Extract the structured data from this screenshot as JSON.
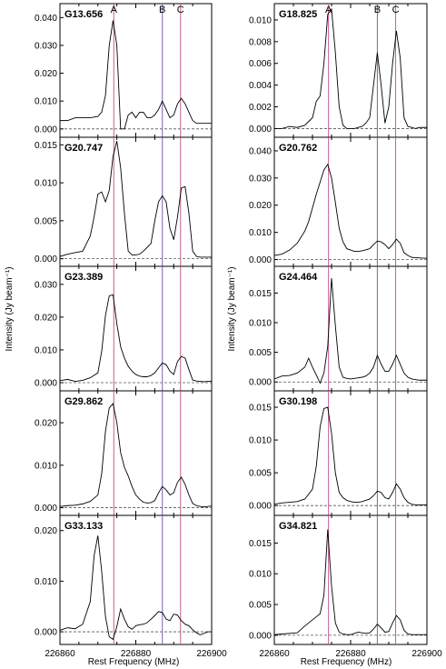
{
  "figure": {
    "ylabel": "Intensity (Jy beam⁻¹)",
    "xlabel": "Rest Frequency (MHz)",
    "xticks": [
      "226860",
      "226880",
      "226900"
    ]
  },
  "chart_data": {
    "type": "line",
    "xlim": [
      226860,
      226900
    ],
    "xticks": [
      226860,
      226880,
      226900
    ],
    "xlabel": "Rest Frequency (MHz)",
    "ylabel": "Intensity (Jy beam⁻¹)",
    "markers": [
      {
        "label": "A",
        "x": 226874.2,
        "color": "#c06090"
      },
      {
        "label": "B",
        "x": 226887.0,
        "color": "#8060b0"
      },
      {
        "label": "C",
        "x": 226891.8,
        "color": "#c06090"
      }
    ],
    "panels": [
      {
        "name": "G13.656",
        "ylim": [
          -0.003,
          0.045
        ],
        "yticks": [
          0.0,
          0.01,
          0.02,
          0.03,
          0.04
        ],
        "ytick_labels": [
          "0.000",
          "0.010",
          "0.020",
          "0.030",
          "0.040"
        ],
        "x": [
          226860,
          226862,
          226864,
          226866,
          226868,
          226870,
          226871,
          226872,
          226873,
          226874,
          226875,
          226876,
          226877,
          226878,
          226879,
          226880,
          226881,
          226882,
          226883,
          226884,
          226885,
          226886,
          226887,
          226888,
          226889,
          226890,
          226891,
          226892,
          226893,
          226894,
          226895,
          226896,
          226897,
          226898,
          226899,
          226900
        ],
        "y": [
          0.003,
          0.003,
          0.004,
          0.004,
          0.004,
          0.0045,
          0.006,
          0.012,
          0.03,
          0.039,
          0.03,
          0.0,
          0.0,
          0.005,
          0.006,
          0.004,
          0.006,
          0.006,
          0.004,
          0.004,
          0.005,
          0.007,
          0.01,
          0.007,
          0.004,
          0.005,
          0.009,
          0.011,
          0.009,
          0.006,
          0.003,
          0.002,
          0.002,
          0.002,
          0.002,
          0.002
        ]
      },
      {
        "name": "G18.825",
        "ylim": [
          -0.0008,
          0.0115
        ],
        "yticks": [
          0.0,
          0.002,
          0.004,
          0.006,
          0.008,
          0.01
        ],
        "ytick_labels": [
          "0.000",
          "0.002",
          "0.004",
          "0.006",
          "0.008",
          "0.010"
        ],
        "x": [
          226860,
          226862,
          226864,
          226866,
          226868,
          226870,
          226871,
          226872,
          226873,
          226874,
          226875,
          226876,
          226877,
          226878,
          226879,
          226880,
          226881,
          226882,
          226883,
          226884,
          226885,
          226886,
          226887,
          226888,
          226889,
          226890,
          226891,
          226892,
          226893,
          226894,
          226895,
          226896,
          226897,
          226898,
          226899,
          226900
        ],
        "y": [
          0.0,
          0.0,
          0.0002,
          0.0001,
          0.0003,
          0.001,
          0.0025,
          0.003,
          0.006,
          0.0105,
          0.011,
          0.007,
          0.002,
          0.0003,
          0.0,
          0.0,
          0.0,
          0.0001,
          0.0002,
          0.0005,
          0.001,
          0.004,
          0.007,
          0.004,
          0.0005,
          0.002,
          0.006,
          0.009,
          0.0065,
          0.001,
          0.0002,
          0.0001,
          0.0,
          0.0001,
          0.0001,
          0.0001
        ]
      },
      {
        "name": "G20.747",
        "ylim": [
          -0.001,
          0.016
        ],
        "yticks": [
          0.0,
          0.005,
          0.01,
          0.015
        ],
        "ytick_labels": [
          "0.000",
          "0.005",
          "0.010",
          "0.015"
        ],
        "x": [
          226860,
          226862,
          226864,
          226866,
          226868,
          226869,
          226870,
          226871,
          226872,
          226873,
          226874,
          226875,
          226876,
          226877,
          226878,
          226879,
          226880,
          226881,
          226882,
          226883,
          226884,
          226885,
          226886,
          226887,
          226888,
          226889,
          226890,
          226891,
          226892,
          226893,
          226894,
          226895,
          226896,
          226897,
          226898,
          226899,
          226900
        ],
        "y": [
          0.0003,
          0.0006,
          0.0008,
          0.001,
          0.003,
          0.0055,
          0.0085,
          0.0088,
          0.0075,
          0.009,
          0.0135,
          0.0155,
          0.012,
          0.006,
          0.001,
          0.0005,
          0.0005,
          0.0006,
          0.001,
          0.0015,
          0.002,
          0.005,
          0.0075,
          0.0083,
          0.0075,
          0.004,
          0.0025,
          0.0055,
          0.0093,
          0.0095,
          0.006,
          0.001,
          0.0003,
          0.0002,
          0.0002,
          0.0002,
          0.0002
        ]
      },
      {
        "name": "G20.762",
        "ylim": [
          -0.0025,
          0.045
        ],
        "yticks": [
          0.0,
          0.01,
          0.02,
          0.03,
          0.04
        ],
        "ytick_labels": [
          "0.000",
          "0.010",
          "0.020",
          "0.030",
          "0.040"
        ],
        "x": [
          226860,
          226862,
          226864,
          226866,
          226868,
          226869,
          226870,
          226871,
          226872,
          226873,
          226874,
          226875,
          226876,
          226877,
          226878,
          226879,
          226880,
          226881,
          226882,
          226883,
          226884,
          226885,
          226886,
          226887,
          226888,
          226889,
          226890,
          226891,
          226892,
          226893,
          226894,
          226895,
          226896,
          226897,
          226898,
          226899,
          226900
        ],
        "y": [
          0.0015,
          0.002,
          0.0035,
          0.006,
          0.0105,
          0.014,
          0.019,
          0.024,
          0.0285,
          0.033,
          0.035,
          0.03,
          0.021,
          0.0115,
          0.0065,
          0.004,
          0.0035,
          0.003,
          0.003,
          0.0032,
          0.0036,
          0.004,
          0.0055,
          0.0068,
          0.0065,
          0.0055,
          0.004,
          0.0055,
          0.0075,
          0.006,
          0.0025,
          0.0015,
          0.0008,
          0.0007,
          0.0006,
          0.0005,
          0.0005
        ]
      },
      {
        "name": "G23.389",
        "ylim": [
          -0.0025,
          0.0355
        ],
        "yticks": [
          0.0,
          0.01,
          0.02,
          0.03
        ],
        "ytick_labels": [
          "0.000",
          "0.010",
          "0.020",
          "0.030"
        ],
        "x": [
          226860,
          226862,
          226864,
          226866,
          226868,
          226870,
          226871,
          226872,
          226873,
          226874,
          226875,
          226876,
          226877,
          226878,
          226879,
          226880,
          226881,
          226882,
          226883,
          226884,
          226885,
          226886,
          226887,
          226888,
          226889,
          226890,
          226891,
          226892,
          226893,
          226894,
          226895,
          226896,
          226897,
          226898,
          226899,
          226900
        ],
        "y": [
          0.0006,
          0.001,
          0.0004,
          0.0007,
          0.0015,
          0.003,
          0.0095,
          0.0205,
          0.0265,
          0.0268,
          0.018,
          0.011,
          0.0075,
          0.005,
          0.0035,
          0.0025,
          0.002,
          0.0018,
          0.0018,
          0.0022,
          0.003,
          0.0045,
          0.006,
          0.0055,
          0.0035,
          0.0025,
          0.0065,
          0.008,
          0.0075,
          0.004,
          0.0008,
          0.0005,
          0.0004,
          0.0003,
          0.0004,
          0.0004
        ]
      },
      {
        "name": "G24.464",
        "ylim": [
          -0.0015,
          0.0195
        ],
        "yticks": [
          0.0,
          0.005,
          0.01,
          0.015
        ],
        "ytick_labels": [
          "0.000",
          "0.005",
          "0.010",
          "0.015"
        ],
        "x": [
          226860,
          226862,
          226864,
          226866,
          226868,
          226869,
          226870,
          226871,
          226872,
          226873,
          226874,
          226875,
          226876,
          226877,
          226878,
          226879,
          226880,
          226881,
          226882,
          226883,
          226884,
          226885,
          226886,
          226887,
          226888,
          226889,
          226890,
          226891,
          226892,
          226893,
          226894,
          226895,
          226896,
          226897,
          226898,
          226899,
          226900
        ],
        "y": [
          0.0005,
          0.001,
          0.0011,
          0.0015,
          0.0025,
          0.004,
          0.0025,
          0.0012,
          -0.0002,
          0.0015,
          0.006,
          0.0175,
          0.0095,
          0.0025,
          0.0008,
          0.0006,
          0.0005,
          0.0006,
          0.0007,
          0.0008,
          0.001,
          0.0015,
          0.0025,
          0.0045,
          0.003,
          0.0018,
          0.0018,
          0.003,
          0.0045,
          0.003,
          0.0015,
          0.0008,
          0.0005,
          0.0004,
          0.0003,
          0.0003,
          0.0003
        ]
      },
      {
        "name": "G29.862",
        "ylim": [
          -0.0018,
          0.0275
        ],
        "yticks": [
          0.0,
          0.01,
          0.02
        ],
        "ytick_labels": [
          "0.000",
          "0.010",
          "0.020"
        ],
        "x": [
          226860,
          226862,
          226864,
          226866,
          226868,
          226870,
          226871,
          226872,
          226873,
          226874,
          226875,
          226876,
          226877,
          226878,
          226879,
          226880,
          226881,
          226882,
          226883,
          226884,
          226885,
          226886,
          226887,
          226888,
          226889,
          226890,
          226891,
          226892,
          226893,
          226894,
          226895,
          226896,
          226897,
          226898,
          226899,
          226900
        ],
        "y": [
          0.0003,
          0.0005,
          0.0006,
          0.0009,
          0.0015,
          0.003,
          0.008,
          0.018,
          0.0235,
          0.0245,
          0.02,
          0.013,
          0.0095,
          0.0075,
          0.005,
          0.003,
          0.002,
          0.0013,
          0.0011,
          0.0012,
          0.0017,
          0.0035,
          0.005,
          0.0042,
          0.003,
          0.0035,
          0.006,
          0.0072,
          0.0055,
          0.003,
          0.001,
          0.0005,
          0.0003,
          0.0002,
          0.0003,
          0.0004
        ]
      },
      {
        "name": "G30.198",
        "ylim": [
          -0.0015,
          0.0175
        ],
        "yticks": [
          0.0,
          0.005,
          0.01,
          0.015
        ],
        "ytick_labels": [
          "0.000",
          "0.005",
          "0.010",
          "0.015"
        ],
        "x": [
          226860,
          226862,
          226864,
          226866,
          226868,
          226870,
          226871,
          226872,
          226873,
          226874,
          226875,
          226876,
          226877,
          226878,
          226879,
          226880,
          226881,
          226882,
          226883,
          226884,
          226885,
          226886,
          226887,
          226888,
          226889,
          226890,
          226891,
          226892,
          226893,
          226894,
          226895,
          226896,
          226897,
          226898,
          226899,
          226900
        ],
        "y": [
          0.0002,
          0.0004,
          0.0005,
          0.0006,
          0.001,
          0.0025,
          0.006,
          0.012,
          0.0148,
          0.015,
          0.011,
          0.005,
          0.002,
          0.0012,
          0.0008,
          0.0006,
          0.0005,
          0.0005,
          0.0006,
          0.0008,
          0.001,
          0.0015,
          0.0022,
          0.002,
          0.0012,
          0.001,
          0.002,
          0.0033,
          0.0025,
          0.0012,
          0.0005,
          0.0002,
          0.0001,
          0.0001,
          0.0001,
          0.0001
        ]
      },
      {
        "name": "G33.133",
        "ylim": [
          -0.0025,
          0.023
        ],
        "yticks": [
          0.0,
          0.01,
          0.02
        ],
        "ytick_labels": [
          "0.000",
          "0.010",
          "0.020"
        ],
        "x": [
          226860,
          226862,
          226864,
          226866,
          226868,
          226869,
          226870,
          226871,
          226872,
          226873,
          226874,
          226875,
          226876,
          226877,
          226878,
          226879,
          226880,
          226881,
          226882,
          226883,
          226884,
          226885,
          226886,
          226887,
          226888,
          226889,
          226890,
          226891,
          226892,
          226893,
          226894,
          226895,
          226896,
          226897,
          226898,
          226899,
          226900
        ],
        "y": [
          0.0003,
          0.0008,
          0.0006,
          0.0015,
          0.006,
          0.015,
          0.019,
          0.012,
          0.003,
          -0.001,
          -0.0015,
          0.001,
          0.0045,
          0.0025,
          0.001,
          0.0005,
          0.0012,
          0.0014,
          0.0015,
          0.0018,
          0.0025,
          0.0032,
          0.004,
          0.0038,
          0.0025,
          0.0022,
          0.0035,
          0.0033,
          0.0022,
          0.0015,
          0.0012,
          0.0004,
          -0.0002,
          -0.0006,
          -0.0003,
          0.0,
          0.0
        ]
      },
      {
        "name": "G34.821",
        "ylim": [
          -0.0015,
          0.0195
        ],
        "yticks": [
          0.0,
          0.005,
          0.01,
          0.015
        ],
        "ytick_labels": [
          "0.000",
          "0.005",
          "0.010",
          "0.015"
        ],
        "x": [
          226860,
          226862,
          226864,
          226866,
          226868,
          226870,
          226871,
          226872,
          226873,
          226874,
          226875,
          226876,
          226877,
          226878,
          226879,
          226880,
          226881,
          226882,
          226883,
          226884,
          226885,
          226886,
          226887,
          226888,
          226889,
          226890,
          226891,
          226892,
          226893,
          226894,
          226895,
          226896,
          226897,
          226898,
          226899,
          226900
        ],
        "y": [
          0.0001,
          0.0002,
          0.0003,
          0.0004,
          0.0015,
          0.0025,
          0.003,
          0.0035,
          0.0065,
          0.0172,
          0.008,
          0.002,
          0.0005,
          0.0002,
          0.0001,
          0.0001,
          0.0003,
          0.0005,
          0.0004,
          0.0003,
          0.0004,
          0.001,
          0.0018,
          0.0012,
          0.0005,
          0.0006,
          0.002,
          0.0032,
          0.0025,
          0.0008,
          0.0002,
          0.0001,
          0.0001,
          0.0001,
          0.0001,
          0.0001
        ]
      }
    ]
  }
}
